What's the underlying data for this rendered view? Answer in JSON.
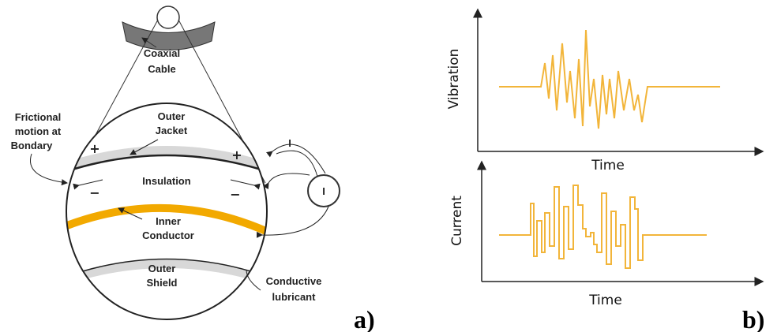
{
  "diagram_a": {
    "coaxial_cable": [
      "Coaxial",
      "Cable"
    ],
    "outer_jacket": [
      "Outer",
      "Jacket"
    ],
    "frictional_motion": [
      "Frictional",
      "motion at",
      "Bondary"
    ],
    "insulation": "Insulation",
    "inner_conductor": [
      "Inner",
      "Conductor"
    ],
    "outer_shield": [
      "Outer",
      "Shield"
    ],
    "conductive_lubricant": [
      "Conductive",
      "lubricant"
    ],
    "plus_signs": [
      "+",
      "+"
    ],
    "minus_signs": [
      "−",
      "−"
    ],
    "current_arrow_label": "I",
    "meter_label": "I",
    "panel_label": "a)"
  },
  "diagram_b": {
    "top_y_label": "Vibration",
    "top_x_label": "Time",
    "bottom_y_label": "Current",
    "bottom_x_label": "Time",
    "panel_label": "b)"
  }
}
